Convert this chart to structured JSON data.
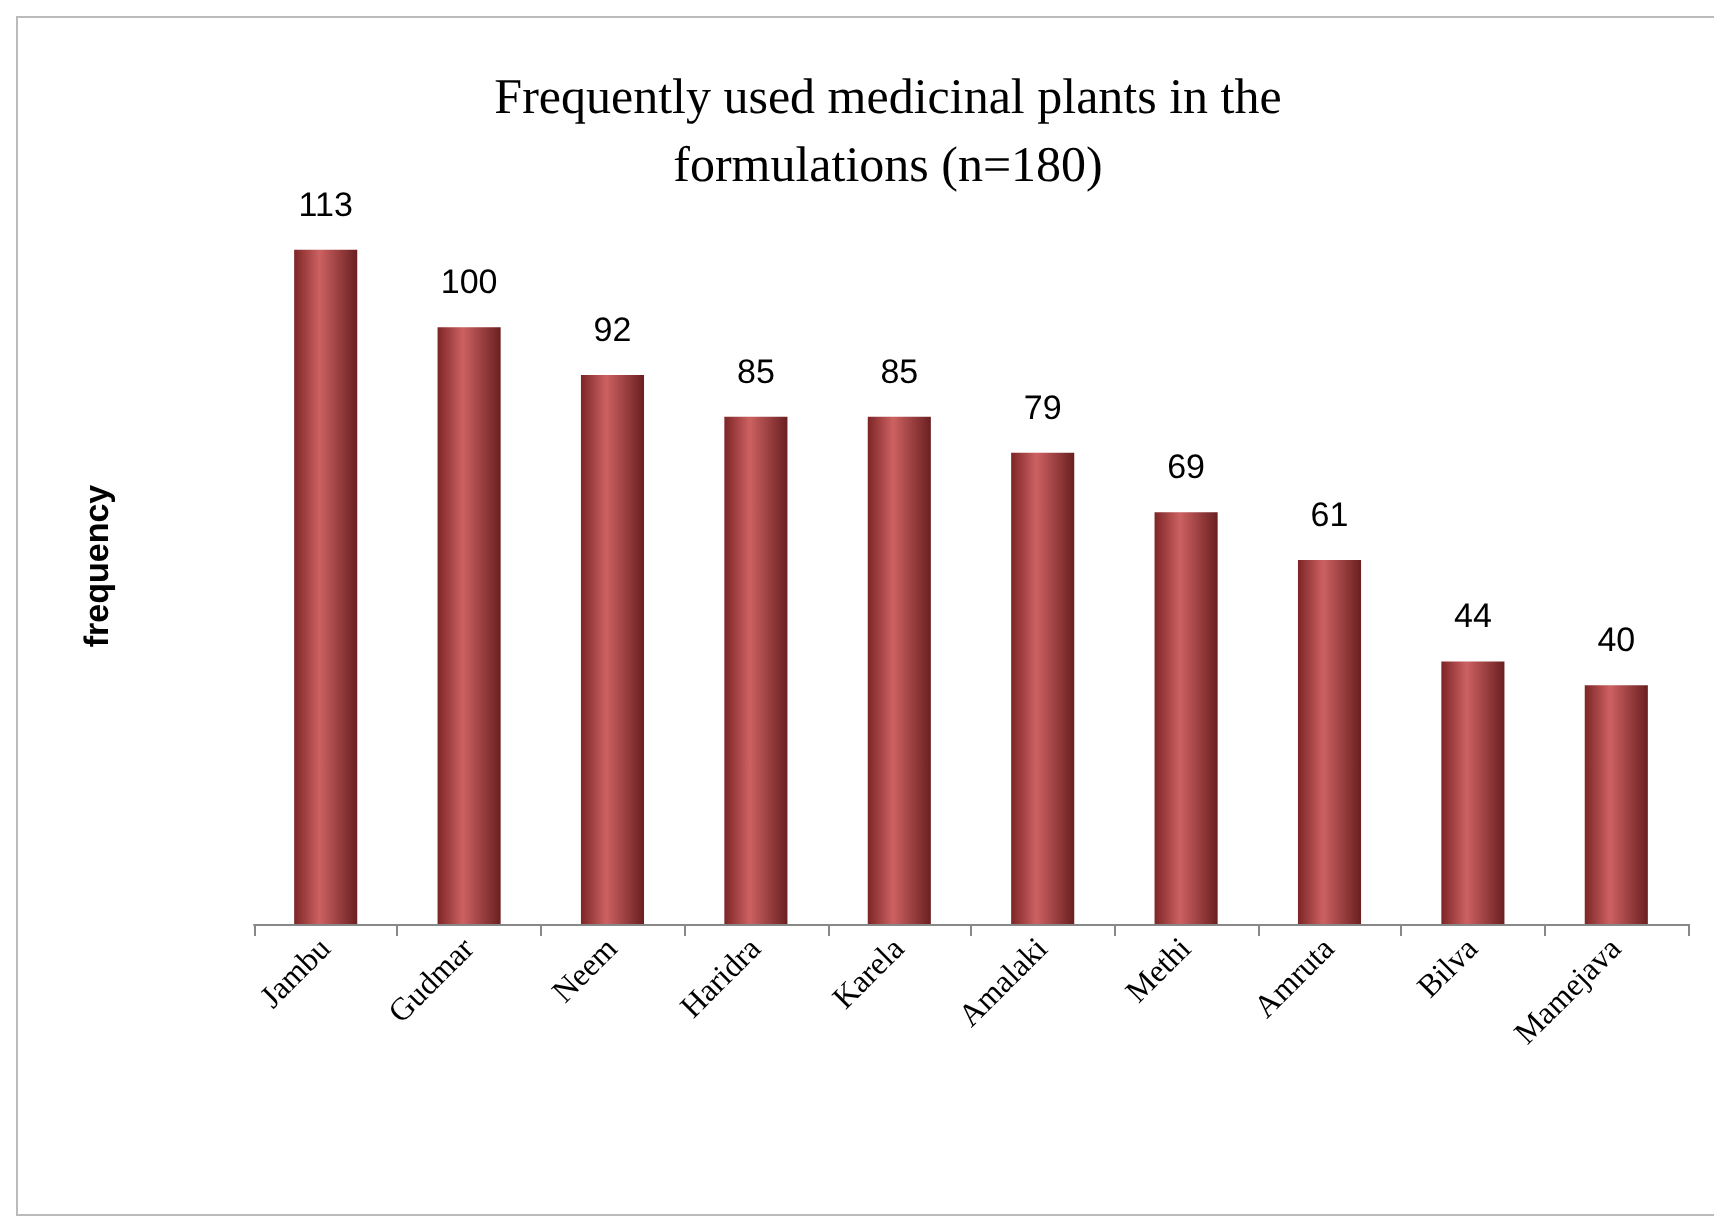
{
  "chart_data": {
    "type": "bar",
    "title": "Frequently used medicinal plants in the\nformulations (n=180)",
    "ylabel": "frequency",
    "categories": [
      "Jambu",
      "Gudmar",
      "Neem",
      "Haridra",
      "Karela",
      "Amalaki",
      "Methi",
      "Amruta",
      "Bilva",
      "Mamejava"
    ],
    "values": [
      113,
      100,
      92,
      85,
      85,
      79,
      69,
      61,
      44,
      40
    ],
    "color": "#c0393b",
    "data_labels": true,
    "tick_labels": "x"
  }
}
